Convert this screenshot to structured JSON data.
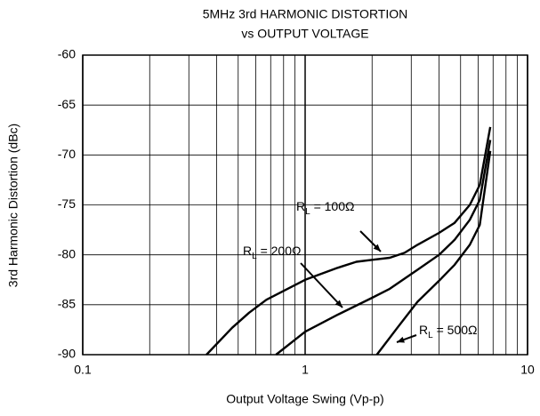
{
  "chart_data": {
    "type": "line",
    "title": [
      "5MHz 3rd HARMONIC DISTORTION",
      "vs OUTPUT VOLTAGE"
    ],
    "xlabel": "Output Voltage Swing (Vp-p)",
    "ylabel": "3rd Harmonic Distortion (dBc)",
    "xscale": "log",
    "grid": true,
    "xlim": [
      0.1,
      10
    ],
    "xticks": [
      0.1,
      1,
      10
    ],
    "ylim": [
      -90,
      -60
    ],
    "yticks": [
      -90,
      -85,
      -80,
      -75,
      -70,
      -65,
      -60
    ],
    "series": [
      {
        "name": "RL = 100Ω",
        "color": "#000000",
        "x": [
          0.36,
          0.47,
          0.56,
          0.67,
          1,
          1.4,
          1.7,
          2.0,
          2.4,
          2.8,
          3.2,
          4.0,
          4.7,
          5.5,
          6.1,
          6.8
        ],
        "values": [
          -90,
          -87.3,
          -85.8,
          -84.5,
          -82.5,
          -81.3,
          -80.7,
          -80.5,
          -80.3,
          -79.8,
          -79.0,
          -77.8,
          -76.8,
          -75.0,
          -73.0,
          -67.2
        ]
      },
      {
        "name": "RL = 200Ω",
        "color": "#000000",
        "x": [
          0.74,
          1,
          1.4,
          2.0,
          2.4,
          3.2,
          4.0,
          4.7,
          5.5,
          6.1,
          6.8
        ],
        "values": [
          -90,
          -87.7,
          -86.0,
          -84.3,
          -83.4,
          -81.5,
          -80.0,
          -78.5,
          -76.5,
          -74.5,
          -68.5
        ]
      },
      {
        "name": "RL = 500Ω",
        "color": "#000000",
        "x": [
          2.1,
          2.6,
          3.2,
          4.0,
          4.7,
          5.5,
          6.1,
          6.8
        ],
        "values": [
          -90,
          -87.3,
          -84.7,
          -82.6,
          -81.0,
          -79.0,
          -77.0,
          -69.6
        ]
      }
    ]
  }
}
